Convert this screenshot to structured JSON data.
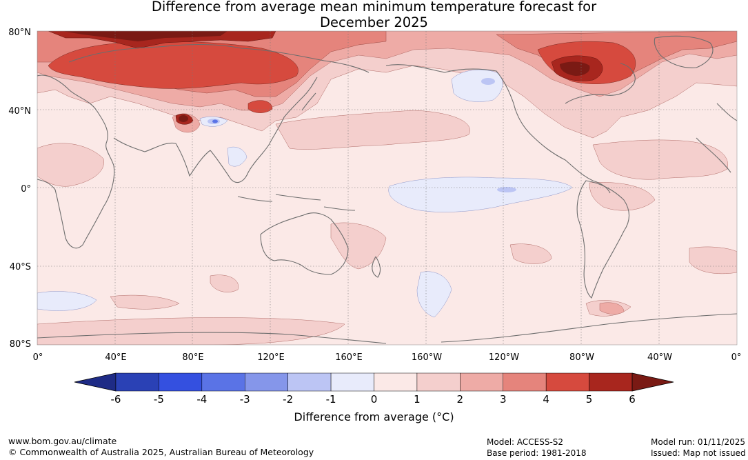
{
  "title": {
    "line1": "Difference from average mean minimum temperature forecast for",
    "line2": "December 2025"
  },
  "map": {
    "lat_labels": [
      "80°N",
      "40°N",
      "0°",
      "40°S",
      "80°S"
    ],
    "lon_labels": [
      "0°",
      "40°E",
      "80°E",
      "120°E",
      "160°E",
      "160°W",
      "120°W",
      "80°W",
      "40°W",
      "0°"
    ]
  },
  "colorbar": {
    "ticks": [
      "-6",
      "-5",
      "-4",
      "-3",
      "-2",
      "-1",
      "0",
      "1",
      "2",
      "3",
      "4",
      "5",
      "6"
    ],
    "colors": [
      "#1e2b86",
      "#2a41b5",
      "#3450e0",
      "#5a73e6",
      "#8596ea",
      "#bcc5f4",
      "#e8ebfb",
      "#fbe9e7",
      "#f4cfcd",
      "#eeaba6",
      "#e5847c",
      "#d64a3e",
      "#a8261e",
      "#7a1a14"
    ],
    "label": "Difference from average (°C)"
  },
  "footer": {
    "site": "www.bom.gov.au/climate",
    "copyright": "© Commonwealth of Australia 2025, Australian Bureau of Meteorology",
    "model": "Model: ACCESS-S2",
    "base_period": "Base period: 1981-2018",
    "model_run": "Model run: 01/11/2025",
    "issued": "Issued: Map not issued"
  }
}
